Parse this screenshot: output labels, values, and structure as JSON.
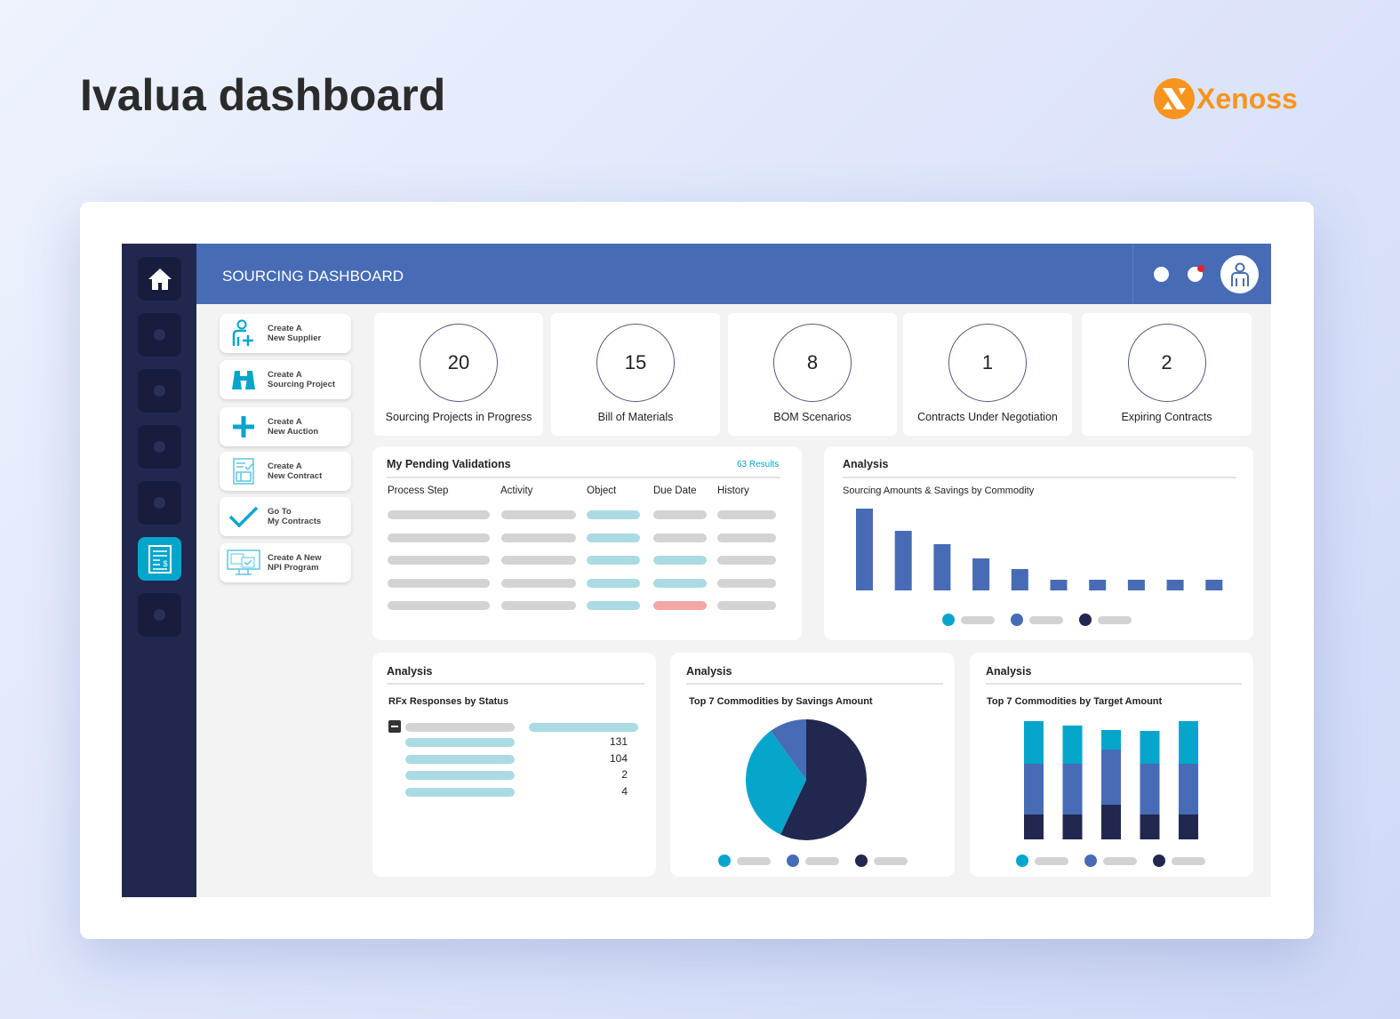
{
  "page_title": "Ivalua dashboard",
  "brand": {
    "name": "Xenoss",
    "color": "#f7941d"
  },
  "header": {
    "title": "SOURCING DASHBOARD",
    "icons": [
      "status-dot-icon",
      "notification-icon",
      "user-avatar-icon"
    ]
  },
  "sidebar": {
    "items": [
      "home-icon",
      "nav-item",
      "nav-item",
      "nav-item",
      "nav-item",
      "invoice-icon",
      "nav-item"
    ],
    "active_index": 5
  },
  "actions": [
    {
      "label": "Create A\nNew Supplier",
      "icon": "add-user-icon"
    },
    {
      "label": "Create A\nSourcing Project",
      "icon": "binoculars-icon"
    },
    {
      "label": "Create A\nNew Auction",
      "icon": "plus-icon"
    },
    {
      "label": "Create A\nNew Contract",
      "icon": "contract-icon"
    },
    {
      "label": "Go To\nMy Contracts",
      "icon": "checkmark-icon"
    },
    {
      "label": "Create A New\nNPI Program",
      "icon": "monitor-icon"
    }
  ],
  "kpis": [
    {
      "value": "20",
      "label": "Sourcing Projects in Progress"
    },
    {
      "value": "15",
      "label": "Bill of Materials"
    },
    {
      "value": "8",
      "label": "BOM Scenarios"
    },
    {
      "value": "1",
      "label": "Contracts Under Negotiation"
    },
    {
      "value": "2",
      "label": "Expiring Contracts"
    }
  ],
  "validations": {
    "title": "My Pending Validations",
    "results": "63 Results",
    "columns": [
      "Process Step",
      "Activity",
      "Object",
      "Due Date",
      "History"
    ]
  },
  "analysis_label": "Analysis",
  "colors": {
    "cyan": "#06a6cc",
    "blue": "#476cb5",
    "navy": "#222750",
    "teal_pill": "#aadbe2",
    "red_pill": "#f4a5a5",
    "grey_pill": "#d3d3d3"
  },
  "chart_data": [
    {
      "type": "bar",
      "title": "Sourcing Amounts & Savings by Commodity",
      "values": [
        92,
        67,
        52,
        36,
        24,
        12,
        12,
        12,
        12,
        12
      ],
      "legend_series": 3
    },
    {
      "type": "table",
      "title": "RFx Responses by Status",
      "values": [
        131,
        104,
        2,
        4
      ]
    },
    {
      "type": "pie",
      "title": "Top 7 Commodities by Savings Amount",
      "values": [
        57,
        33,
        10
      ],
      "colors": [
        "#222750",
        "#06a6cc",
        "#476cb5"
      ]
    },
    {
      "type": "bar",
      "stacked": true,
      "title": "Top 7 Commodities by Target Amount",
      "series": [
        {
          "values": [
            28,
            28,
            39,
            28,
            28
          ]
        },
        {
          "values": [
            57,
            57,
            62,
            57,
            57
          ]
        },
        {
          "values": [
            48,
            43,
            22,
            37,
            48
          ]
        }
      ]
    }
  ]
}
